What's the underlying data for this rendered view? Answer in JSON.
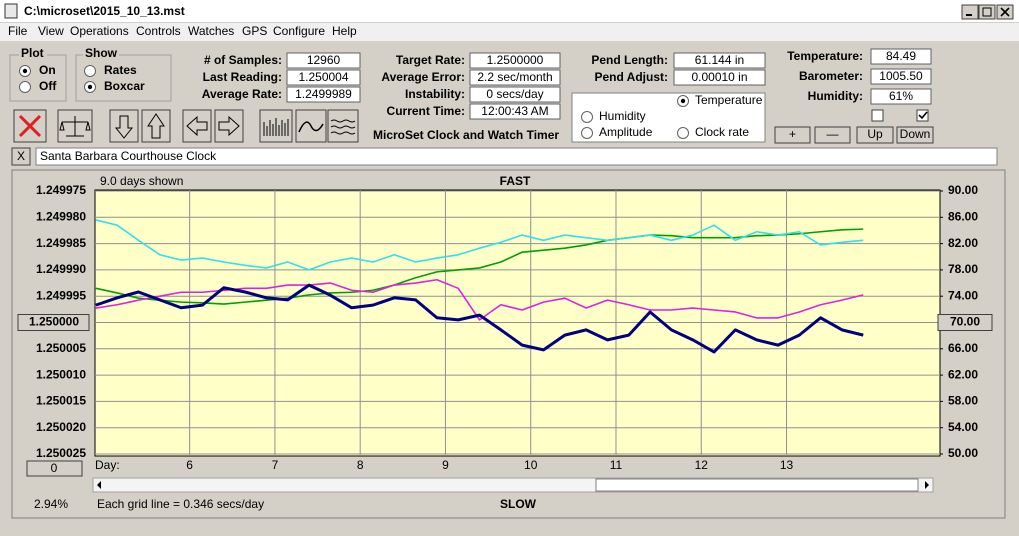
{
  "window": {
    "title": "C:\\microset\\2015_10_13.mst"
  },
  "menu": [
    "File",
    "View",
    "Operations",
    "Controls",
    "Watches",
    "GPS",
    "Configure",
    "Help"
  ],
  "plot_group": {
    "title": "Plot",
    "options": [
      "On",
      "Off"
    ]
  },
  "show_group": {
    "title": "Show",
    "options": [
      "Rates",
      "Boxcar"
    ]
  },
  "readouts": [
    {
      "label": "# of Samples:",
      "value": "12960"
    },
    {
      "label": "Last Reading:",
      "value": "1.250004"
    },
    {
      "label": "Average Rate:",
      "value": "1.2499989"
    },
    {
      "label": "Target Rate:",
      "value": "1.2500000"
    },
    {
      "label": "Average Error:",
      "value": "2.2 sec/month"
    },
    {
      "label": "Instability:",
      "value": "0 secs/day"
    },
    {
      "label": "Current Time:",
      "value": "12:00:43 AM"
    },
    {
      "label": "Pend Length:",
      "value": "61.144 in"
    },
    {
      "label": "Pend Adjust:",
      "value": "0.00010 in"
    },
    {
      "label": "Temperature:",
      "value": "84.49"
    },
    {
      "label": "Barometer:",
      "value": "1005.50"
    },
    {
      "label": "Humidity:",
      "value": "61%"
    }
  ],
  "caption": "MicroSet Clock and Watch Timer",
  "buttons": [
    "+",
    "—",
    "Up",
    "Down"
  ],
  "clear_button": "X",
  "clock_name": "Santa Barbara Courthouse Clock",
  "zero_button": "0",
  "chart_data": {
    "type": "line",
    "days_shown": "9.0 days shown",
    "top_label": "FAST",
    "bottom_label": "SLOW",
    "grid_note": "Each grid line = 0.346 secs/day",
    "percent": "2.94%",
    "x_label": "Day:",
    "x": [
      4.9,
      5.15,
      5.4,
      5.65,
      5.9,
      6.15,
      6.4,
      6.65,
      6.9,
      7.15,
      7.4,
      7.65,
      7.9,
      8.15,
      8.4,
      8.65,
      8.9,
      9.15,
      9.4,
      9.65,
      9.9,
      10.15,
      10.4,
      10.65,
      10.9,
      11.15,
      11.4,
      11.65,
      11.9,
      12.15,
      12.4,
      12.65,
      12.9,
      13.15,
      13.4,
      13.65,
      13.9
    ],
    "xlim": [
      4.89,
      14.8
    ],
    "xticks": [
      6,
      7,
      8,
      9,
      10,
      11,
      12,
      13
    ],
    "ylim": [
      1.250025,
      1.249975
    ],
    "yticks": [
      1.249975,
      {
        "value": 1.24998,
        "label": "1.249980"
      },
      1.249985,
      {
        "value": 1.24999,
        "label": "1.249990"
      },
      1.249995,
      {
        "value": 1.25,
        "label": "1.250000"
      },
      1.250005,
      {
        "value": 1.25001,
        "label": "1.250010"
      },
      1.250015,
      {
        "value": 1.25002,
        "label": "1.250020"
      },
      1.250025
    ],
    "y2lim": [
      50,
      90
    ],
    "y2ticks": [
      {
        "value": 90,
        "label": "90.00"
      },
      {
        "value": 86,
        "label": "86.00"
      },
      {
        "value": 82,
        "label": "82.00"
      },
      {
        "value": 78,
        "label": "78.00"
      },
      {
        "value": 74,
        "label": "74.00"
      },
      {
        "value": 70,
        "label": "70.00"
      },
      {
        "value": 66,
        "label": "66.00"
      },
      {
        "value": 62,
        "label": "62.00"
      },
      {
        "value": 58,
        "label": "58.00"
      },
      {
        "value": 54,
        "label": "54.00"
      },
      {
        "value": 50,
        "label": "50.00"
      }
    ],
    "grid": true,
    "series": [
      {
        "name": "Temperature",
        "color": "#00a000",
        "axis": "y2",
        "values": [
          75.2,
          74.5,
          73.7,
          73.4,
          73.1,
          73.0,
          72.8,
          73.1,
          73.4,
          73.7,
          74.2,
          74.5,
          74.6,
          74.9,
          75.7,
          76.8,
          77.7,
          78.0,
          78.3,
          79.2,
          80.7,
          81.0,
          81.3,
          81.8,
          82.5,
          82.9,
          83.3,
          83.2,
          82.9,
          82.9,
          82.9,
          83.2,
          83.3,
          83.5,
          83.8,
          84.1,
          84.2
        ]
      },
      {
        "name": "Humidity",
        "color": "#e020e0",
        "axis": "y2",
        "values": [
          72.2,
          72.7,
          73.4,
          74.0,
          74.6,
          74.6,
          74.9,
          75.2,
          75.2,
          75.7,
          75.7,
          76.0,
          74.9,
          74.6,
          75.7,
          76.0,
          76.5,
          75.2,
          70.4,
          72.7,
          71.9,
          73.1,
          73.7,
          72.2,
          73.4,
          72.7,
          71.9,
          71.9,
          72.2,
          71.9,
          71.6,
          70.7,
          70.7,
          71.6,
          72.7,
          73.4,
          74.2
        ]
      },
      {
        "name": "Amplitude",
        "color": "#30e0f0",
        "axis": "y2",
        "values": [
          85.6,
          84.8,
          82.5,
          80.3,
          79.5,
          79.8,
          79.2,
          78.7,
          78.3,
          79.2,
          78.0,
          79.2,
          79.8,
          79.2,
          80.3,
          79.2,
          79.8,
          80.3,
          81.3,
          82.2,
          83.3,
          82.5,
          83.3,
          82.9,
          82.5,
          82.9,
          83.3,
          82.5,
          83.3,
          84.8,
          82.5,
          83.8,
          83.3,
          83.8,
          81.8,
          82.2,
          82.5
        ]
      },
      {
        "name": "Clock rate",
        "color": "#000080",
        "values": [
          1.2499967,
          1.2499953,
          1.2499942,
          1.2499957,
          1.2499972,
          1.2499967,
          1.2499934,
          1.2499942,
          1.2499953,
          1.2499957,
          1.2499929,
          1.2499948,
          1.2499972,
          1.2499967,
          1.2499953,
          1.2499957,
          1.2499991,
          1.2499995,
          1.2499986,
          1.2500014,
          1.2500043,
          1.2500052,
          1.2500024,
          1.2500014,
          1.2500033,
          1.2500024,
          1.249998,
          1.2500014,
          1.2500033,
          1.2500056,
          1.2500014,
          1.2500033,
          1.2500043,
          1.2500024,
          1.2499991,
          1.2500014,
          1.2500024
        ]
      }
    ]
  }
}
